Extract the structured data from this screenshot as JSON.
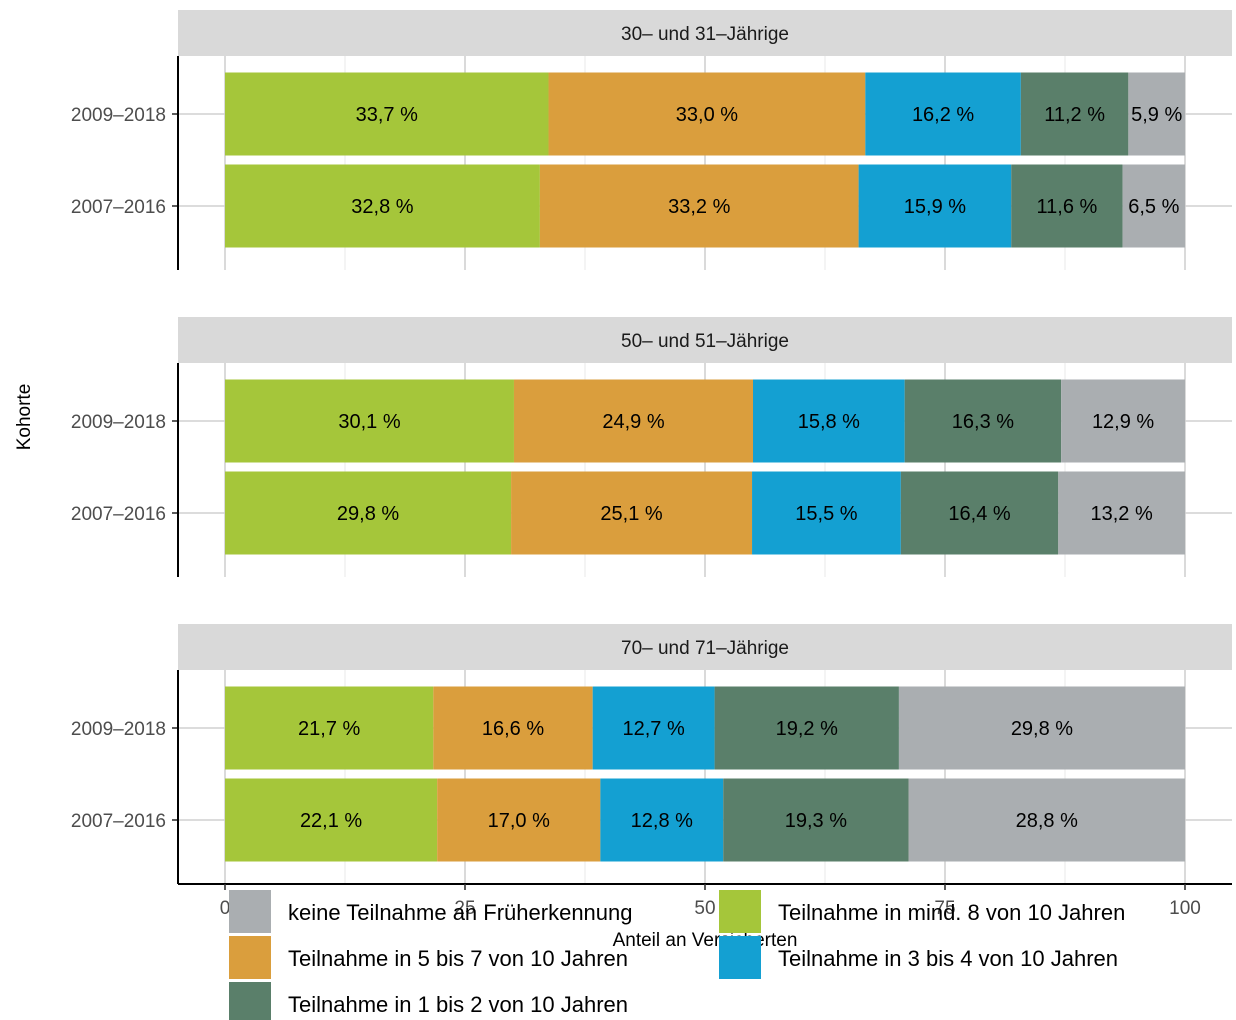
{
  "chart_data": {
    "type": "bar",
    "orientation": "horizontal",
    "stacked": true,
    "xlabel": "Anteil an Versicherten",
    "ylabel": "Kohorte",
    "xlim": [
      0,
      100
    ],
    "x_ticks": [
      "0",
      "25",
      "50",
      "75",
      "100"
    ],
    "categories": [
      "2009–2018",
      "2007–2016"
    ],
    "value_suffix": " %",
    "panels": [
      {
        "title": "30– und 31–Jährige",
        "rows": [
          {
            "label": "2009–2018",
            "values": [
              33.7,
              33.0,
              16.2,
              11.2,
              5.9
            ]
          },
          {
            "label": "2007–2016",
            "values": [
              32.8,
              33.2,
              15.9,
              11.6,
              6.5
            ]
          }
        ]
      },
      {
        "title": "50– und 51–Jährige",
        "rows": [
          {
            "label": "2009–2018",
            "values": [
              30.1,
              24.9,
              15.8,
              16.3,
              12.9
            ]
          },
          {
            "label": "2007–2016",
            "values": [
              29.8,
              25.1,
              15.5,
              16.4,
              13.2
            ]
          }
        ]
      },
      {
        "title": "70– und 71–Jährige",
        "rows": [
          {
            "label": "2009–2018",
            "values": [
              21.7,
              16.6,
              12.7,
              19.2,
              29.8
            ]
          },
          {
            "label": "2007–2016",
            "values": [
              22.1,
              17.0,
              12.8,
              19.3,
              28.8
            ]
          }
        ]
      }
    ],
    "series": [
      {
        "name": "Teilnahme in mind. 8 von 10 Jahren",
        "color": "#a5c63a"
      },
      {
        "name": "Teilnahme in 5 bis 7 von 10 Jahren",
        "color": "#da9e3d"
      },
      {
        "name": "Teilnahme in 3 bis 4 von 10 Jahren",
        "color": "#14a0d2"
      },
      {
        "name": "Teilnahme in 1 bis 2 von 10 Jahren",
        "color": "#5a7f6a"
      },
      {
        "name": "keine Teilnahme an Früherkennung",
        "color": "#aaaeb1"
      }
    ],
    "legend_order": [
      4,
      1,
      3,
      0,
      2
    ],
    "legend_placement": "bottom",
    "grid": true
  }
}
